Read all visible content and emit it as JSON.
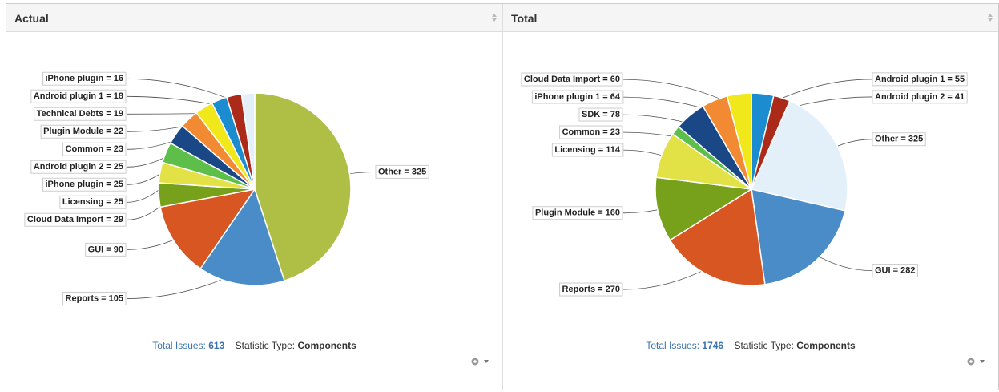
{
  "chart_data": [
    {
      "type": "pie",
      "title": "Actual",
      "categories": [
        "Other",
        "Reports",
        "GUI",
        "Cloud Data Import",
        "Licensing",
        "iPhone plugin",
        "Android plugin 2",
        "Common",
        "Plugin Module",
        "Technical Debts",
        "Android plugin 1",
        "iPhone plugin"
      ],
      "values": [
        325,
        105,
        90,
        29,
        25,
        25,
        25,
        23,
        22,
        19,
        18,
        16
      ],
      "value_labels": [
        "Other = 325",
        "Reports = 105",
        "GUI = 90",
        "Cloud Data Import = 29",
        "Licensing = 25",
        "iPhone plugin = 25",
        "Android plugin 2 = 25",
        "Common = 23",
        "Plugin Module = 22",
        "Technical Debts = 19",
        "Android plugin 1 = 18",
        "iPhone plugin = 16"
      ],
      "colors": [
        "#afbf45",
        "#4a8cc8",
        "#d75621",
        "#77a01b",
        "#e2e246",
        "#5dbf4a",
        "#1a4785",
        "#f28a33",
        "#f0e81a",
        "#1c8cd0",
        "#ac2a1a",
        "#e4f0f8"
      ],
      "total_label": "Total Issues:",
      "total": 613,
      "stat_label": "Statistic Type:",
      "stat_value": "Components"
    },
    {
      "type": "pie",
      "title": "Total",
      "categories": [
        "Android plugin 1",
        "Android plugin 2",
        "Other",
        "GUI",
        "Reports",
        "Plugin Module",
        "Licensing",
        "Common",
        "SDK",
        "iPhone plugin 1",
        "Cloud Data Import"
      ],
      "values": [
        55,
        41,
        325,
        282,
        270,
        160,
        114,
        23,
        78,
        64,
        60
      ],
      "value_labels": [
        "Android plugin 1 = 55",
        "Android plugin 2 = 41",
        "Other = 325",
        "GUI = 282",
        "Reports = 270",
        "Plugin Module = 160",
        "Licensing = 114",
        "Common = 23",
        "SDK = 78",
        "iPhone plugin 1 = 64",
        "Cloud Data Import = 60"
      ],
      "colors": [
        "#1c8cd0",
        "#ac2a1a",
        "#e3eff9",
        "#4a8cc8",
        "#d75621",
        "#77a01b",
        "#e2e246",
        "#5dbf4a",
        "#1a4785",
        "#f28a33",
        "#f0e81a"
      ],
      "total_label": "Total Issues:",
      "total": 1746,
      "stat_label": "Statistic Type:",
      "stat_value": "Components"
    }
  ]
}
